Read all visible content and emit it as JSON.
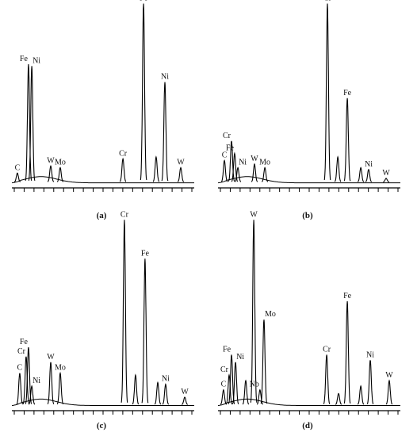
{
  "chart_data": [
    {
      "type": "spectrum",
      "label": "(a)",
      "peaks": [
        {
          "name": "C",
          "x": 3,
          "y": 5
        },
        {
          "name": "Fe",
          "x": 9.1,
          "y": 66
        },
        {
          "name": "Ni",
          "x": 10.9,
          "y": 65
        },
        {
          "name": "W",
          "x": 21.3,
          "y": 9
        },
        {
          "name": "Mo",
          "x": 26.5,
          "y": 8
        },
        {
          "name": "Cr",
          "x": 60.9,
          "y": 13
        },
        {
          "name": "Fe",
          "x": 72.2,
          "y": 100
        },
        {
          "name": null,
          "x": 79.1,
          "y": 14
        },
        {
          "name": "Ni",
          "x": 83.9,
          "y": 56
        },
        {
          "name": "W",
          "x": 92.6,
          "y": 8
        }
      ]
    },
    {
      "type": "spectrum",
      "label": "(b)",
      "peaks": [
        {
          "name": "C",
          "x": 3.5,
          "y": 12
        },
        {
          "name": "Cr",
          "x": 7.4,
          "y": 23
        },
        {
          "name": "Fe",
          "x": 9.1,
          "y": 16
        },
        {
          "name": "Ni",
          "x": 10.9,
          "y": 8
        },
        {
          "name": "W",
          "x": 20,
          "y": 10
        },
        {
          "name": "Mo",
          "x": 25.7,
          "y": 8
        },
        {
          "name": "Cr",
          "x": 60,
          "y": 100
        },
        {
          "name": null,
          "x": 65.7,
          "y": 14
        },
        {
          "name": "Fe",
          "x": 70.9,
          "y": 47
        },
        {
          "name": null,
          "x": 78.3,
          "y": 8
        },
        {
          "name": "Ni",
          "x": 82.6,
          "y": 7
        },
        {
          "name": "W",
          "x": 92.2,
          "y": 2
        }
      ]
    },
    {
      "type": "spectrum",
      "label": "(c)",
      "peaks": [
        {
          "name": "C",
          "x": 4.3,
          "y": 17
        },
        {
          "name": "Cr",
          "x": 7.8,
          "y": 26
        },
        {
          "name": "Fe",
          "x": 9.1,
          "y": 31
        },
        {
          "name": "Ni",
          "x": 10.9,
          "y": 10
        },
        {
          "name": "W",
          "x": 21.3,
          "y": 23
        },
        {
          "name": "Mo",
          "x": 26.5,
          "y": 17
        },
        {
          "name": "Cr",
          "x": 61.7,
          "y": 100
        },
        {
          "name": null,
          "x": 67.8,
          "y": 16
        },
        {
          "name": "Fe",
          "x": 73,
          "y": 79
        },
        {
          "name": null,
          "x": 80,
          "y": 12
        },
        {
          "name": "Ni",
          "x": 84.3,
          "y": 11
        },
        {
          "name": "W",
          "x": 94.8,
          "y": 4
        }
      ]
    },
    {
      "type": "spectrum",
      "label": "(d)",
      "peaks": [
        {
          "name": "C",
          "x": 3,
          "y": 8
        },
        {
          "name": "Cr",
          "x": 6.1,
          "y": 16
        },
        {
          "name": "Fe",
          "x": 7.4,
          "y": 27
        },
        {
          "name": "Ni",
          "x": 9.6,
          "y": 23
        },
        {
          "name": null,
          "x": 15.2,
          "y": 13
        },
        {
          "name": "W",
          "x": 19.6,
          "y": 100
        },
        {
          "name": "Nb",
          "x": 23,
          "y": 8
        },
        {
          "name": "Mo",
          "x": 25.2,
          "y": 46
        },
        {
          "name": "Cr",
          "x": 59.6,
          "y": 27
        },
        {
          "name": null,
          "x": 66.1,
          "y": 6
        },
        {
          "name": "Fe",
          "x": 70.9,
          "y": 56
        },
        {
          "name": null,
          "x": 78.3,
          "y": 10
        },
        {
          "name": "Ni",
          "x": 83.5,
          "y": 24
        },
        {
          "name": "W",
          "x": 93.9,
          "y": 13
        }
      ]
    }
  ]
}
